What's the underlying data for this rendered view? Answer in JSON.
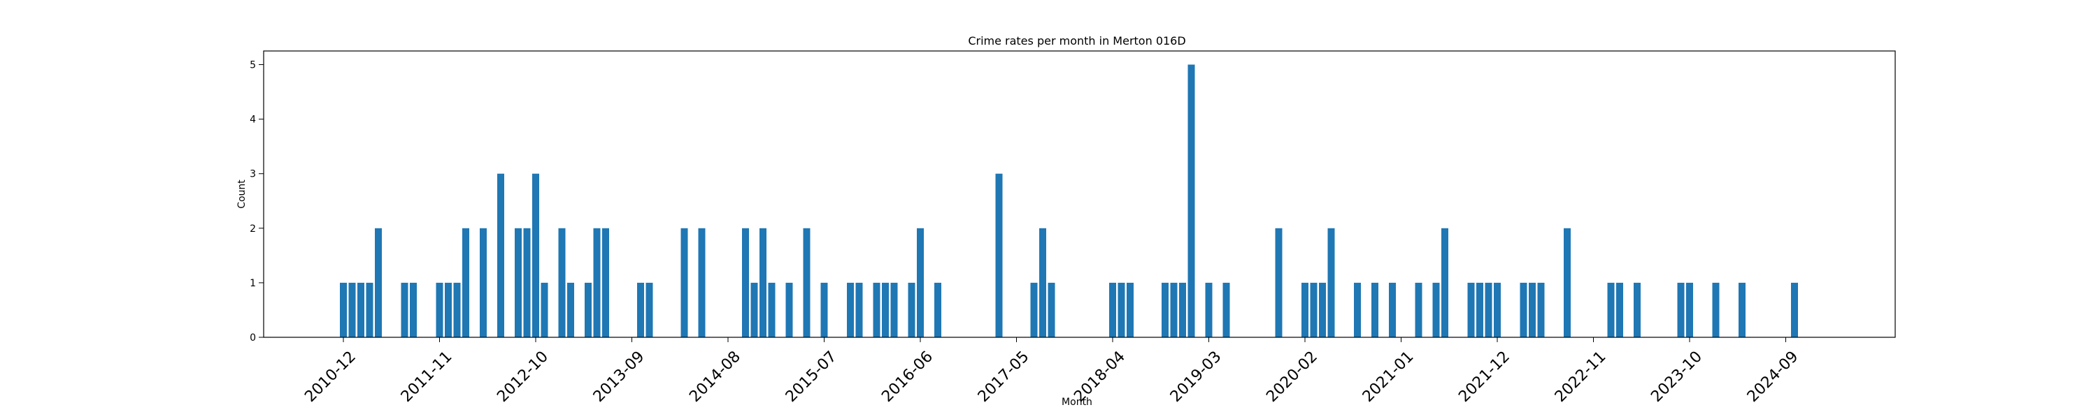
{
  "chart_data": {
    "type": "bar",
    "title": "Crime rates per month in Merton 016D",
    "xlabel": "Month",
    "ylabel": "Count",
    "ylim": [
      0,
      5.25
    ],
    "yticks": [
      0,
      1,
      2,
      3,
      4,
      5
    ],
    "xticks": [
      "2010-12",
      "2011-11",
      "2012-10",
      "2013-09",
      "2014-08",
      "2015-07",
      "2016-06",
      "2017-05",
      "2018-04",
      "2019-03",
      "2020-02",
      "2021-01",
      "2021-12",
      "2022-11",
      "2023-10",
      "2024-09"
    ],
    "grid": false,
    "color": "#1f77b4",
    "categories": [
      "2010-12",
      "2011-01",
      "2011-02",
      "2011-03",
      "2011-04",
      "2011-07",
      "2011-08",
      "2011-11",
      "2011-12",
      "2012-01",
      "2012-02",
      "2012-04",
      "2012-06",
      "2012-08",
      "2012-09",
      "2012-10",
      "2012-11",
      "2013-01",
      "2013-02",
      "2013-04",
      "2013-05",
      "2013-06",
      "2013-10",
      "2013-11",
      "2014-03",
      "2014-05",
      "2014-10",
      "2014-11",
      "2014-12",
      "2015-01",
      "2015-03",
      "2015-05",
      "2015-07",
      "2015-10",
      "2015-11",
      "2016-01",
      "2016-02",
      "2016-03",
      "2016-05",
      "2016-06",
      "2016-08",
      "2017-03",
      "2017-07",
      "2017-08",
      "2017-09",
      "2018-04",
      "2018-05",
      "2018-06",
      "2018-10",
      "2018-11",
      "2018-12",
      "2019-01",
      "2019-03",
      "2019-05",
      "2019-11",
      "2020-02",
      "2020-03",
      "2020-04",
      "2020-05",
      "2020-08",
      "2020-10",
      "2020-12",
      "2021-03",
      "2021-05",
      "2021-06",
      "2021-09",
      "2021-10",
      "2021-11",
      "2021-12",
      "2022-03",
      "2022-04",
      "2022-05",
      "2022-08",
      "2023-01",
      "2023-02",
      "2023-04",
      "2023-09",
      "2023-10",
      "2024-01",
      "2024-04",
      "2024-10"
    ],
    "values": [
      1,
      1,
      1,
      1,
      2,
      1,
      1,
      1,
      1,
      1,
      2,
      2,
      3,
      2,
      2,
      3,
      1,
      2,
      1,
      1,
      2,
      2,
      1,
      1,
      2,
      2,
      2,
      1,
      2,
      1,
      1,
      2,
      1,
      1,
      1,
      1,
      1,
      1,
      1,
      2,
      1,
      3,
      1,
      2,
      1,
      1,
      1,
      1,
      1,
      1,
      1,
      5,
      1,
      1,
      2,
      1,
      1,
      1,
      2,
      1,
      1,
      1,
      1,
      1,
      2,
      1,
      1,
      1,
      1,
      1,
      1,
      1,
      2,
      1,
      1,
      1,
      1,
      1,
      1,
      1,
      1
    ]
  }
}
